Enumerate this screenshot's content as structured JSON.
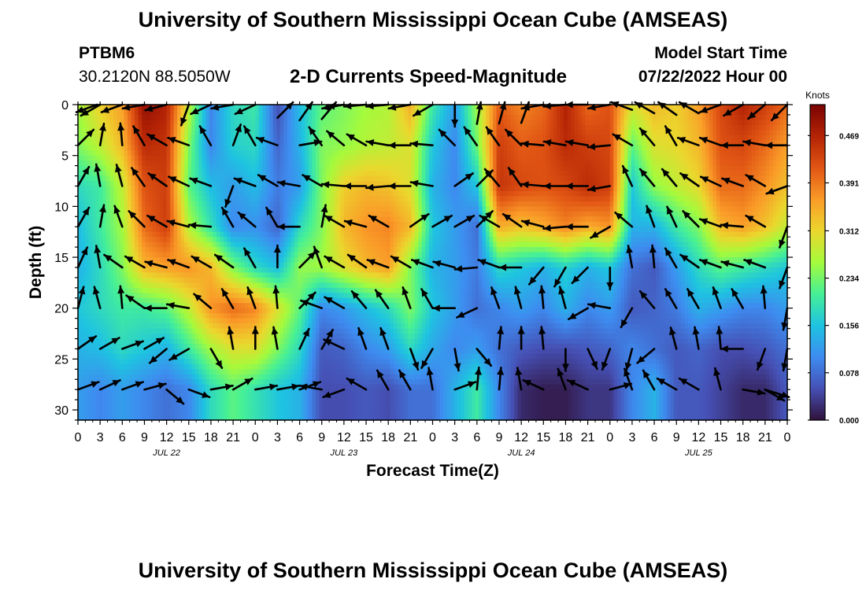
{
  "header": {
    "title": "University of Southern Mississippi Ocean Cube (AMSEAS)",
    "station": "PTBM6",
    "coords": "30.2120N  88.5050W",
    "subtitle": "2-D Currents Speed-Magnitude",
    "model_label": "Model Start Time",
    "model_time": "07/22/2022 Hour 00"
  },
  "footer": {
    "title": "University of Southern Mississippi Ocean Cube (AMSEAS)"
  },
  "chart_data": {
    "type": "heatmap",
    "title": "2-D Currents Speed-Magnitude",
    "xlabel": "Forecast Time(Z)",
    "ylabel": "Depth (ft)",
    "x_hours": [
      0,
      96
    ],
    "x_tick_labels": [
      "0",
      "3",
      "6",
      "9",
      "12",
      "15",
      "18",
      "21",
      "0",
      "3",
      "6",
      "9",
      "12",
      "15",
      "18",
      "21",
      "0",
      "3",
      "6",
      "9",
      "12",
      "15",
      "18",
      "21",
      "0",
      "3",
      "6",
      "9",
      "12",
      "15",
      "18",
      "21",
      "0"
    ],
    "date_labels": [
      {
        "hour": 12,
        "label": "JUL 22"
      },
      {
        "hour": 36,
        "label": "JUL 23"
      },
      {
        "hour": 60,
        "label": "JUL 24"
      },
      {
        "hour": 84,
        "label": "JUL 25"
      }
    ],
    "y_ticks": [
      0,
      5,
      10,
      15,
      20,
      25,
      30
    ],
    "ylim": [
      0,
      31
    ],
    "colorbar": {
      "unit": "Knots",
      "ticks": [
        "0.469",
        "0.391",
        "0.312",
        "0.234",
        "0.156",
        "0.078",
        "0.000"
      ],
      "min": 0,
      "max": 0.52
    },
    "depths": [
      0,
      4,
      8,
      12,
      16,
      20,
      24,
      28
    ],
    "time_step_hours": 3,
    "speed_knots": [
      [
        0.26,
        0.32,
        0.36,
        0.5,
        0.47,
        0.28,
        0.1,
        0.18,
        0.2,
        0.05,
        0.15,
        0.22,
        0.24,
        0.26,
        0.27,
        0.35,
        0.2,
        0.12,
        0.26,
        0.41,
        0.38,
        0.4,
        0.47,
        0.4,
        0.42,
        0.3,
        0.34,
        0.32,
        0.36,
        0.43,
        0.47,
        0.44,
        0.4
      ],
      [
        0.24,
        0.28,
        0.34,
        0.46,
        0.45,
        0.24,
        0.1,
        0.17,
        0.18,
        0.07,
        0.14,
        0.24,
        0.25,
        0.27,
        0.28,
        0.3,
        0.16,
        0.1,
        0.23,
        0.44,
        0.41,
        0.42,
        0.46,
        0.44,
        0.43,
        0.22,
        0.3,
        0.31,
        0.34,
        0.42,
        0.43,
        0.4,
        0.36
      ],
      [
        0.18,
        0.2,
        0.28,
        0.42,
        0.44,
        0.22,
        0.15,
        0.12,
        0.15,
        0.09,
        0.12,
        0.24,
        0.32,
        0.34,
        0.33,
        0.3,
        0.14,
        0.1,
        0.16,
        0.45,
        0.43,
        0.42,
        0.43,
        0.46,
        0.44,
        0.16,
        0.25,
        0.28,
        0.31,
        0.4,
        0.4,
        0.37,
        0.33
      ],
      [
        0.15,
        0.2,
        0.26,
        0.4,
        0.44,
        0.27,
        0.19,
        0.1,
        0.11,
        0.07,
        0.18,
        0.24,
        0.34,
        0.37,
        0.38,
        0.34,
        0.16,
        0.12,
        0.08,
        0.35,
        0.33,
        0.35,
        0.38,
        0.35,
        0.37,
        0.14,
        0.14,
        0.2,
        0.24,
        0.34,
        0.36,
        0.33,
        0.28
      ],
      [
        0.14,
        0.18,
        0.24,
        0.34,
        0.36,
        0.37,
        0.34,
        0.24,
        0.18,
        0.15,
        0.25,
        0.26,
        0.3,
        0.34,
        0.36,
        0.24,
        0.14,
        0.12,
        0.09,
        0.18,
        0.16,
        0.14,
        0.17,
        0.14,
        0.16,
        0.08,
        0.06,
        0.12,
        0.18,
        0.22,
        0.2,
        0.18,
        0.16
      ],
      [
        0.16,
        0.18,
        0.2,
        0.2,
        0.22,
        0.28,
        0.37,
        0.4,
        0.38,
        0.3,
        0.22,
        0.1,
        0.12,
        0.15,
        0.18,
        0.24,
        0.16,
        0.12,
        0.08,
        0.1,
        0.12,
        0.1,
        0.14,
        0.1,
        0.12,
        0.06,
        0.07,
        0.09,
        0.14,
        0.12,
        0.1,
        0.1,
        0.12
      ],
      [
        0.14,
        0.15,
        0.18,
        0.16,
        0.14,
        0.2,
        0.26,
        0.3,
        0.3,
        0.24,
        0.18,
        0.06,
        0.07,
        0.1,
        0.12,
        0.18,
        0.13,
        0.1,
        0.12,
        0.08,
        0.06,
        0.05,
        0.05,
        0.06,
        0.07,
        0.1,
        0.08,
        0.06,
        0.07,
        0.05,
        0.05,
        0.06,
        0.08
      ],
      [
        0.12,
        0.1,
        0.12,
        0.1,
        0.08,
        0.1,
        0.18,
        0.22,
        0.19,
        0.16,
        0.14,
        0.05,
        0.05,
        0.06,
        0.05,
        0.08,
        0.08,
        0.14,
        0.2,
        0.1,
        0.02,
        0.01,
        0.01,
        0.03,
        0.03,
        0.1,
        0.14,
        0.06,
        0.06,
        0.04,
        0.02,
        0.02,
        0.06
      ]
    ],
    "direction_deg": [
      [
        250,
        240,
        250,
        260,
        255,
        200,
        245,
        260,
        245,
        45,
        35,
        40,
        260,
        265,
        265,
        260,
        240,
        180,
        10,
        15,
        20,
        260,
        265,
        270,
        260,
        290,
        300,
        305,
        300,
        250,
        240,
        230,
        225
      ],
      [
        45,
        10,
        355,
        330,
        300,
        290,
        330,
        20,
        330,
        290,
        80,
        325,
        310,
        300,
        280,
        270,
        275,
        315,
        325,
        325,
        315,
        275,
        280,
        280,
        265,
        300,
        320,
        330,
        290,
        290,
        270,
        280,
        270
      ],
      [
        30,
        350,
        345,
        325,
        305,
        295,
        290,
        200,
        290,
        300,
        280,
        300,
        275,
        270,
        265,
        270,
        280,
        55,
        45,
        320,
        325,
        275,
        270,
        270,
        260,
        335,
        320,
        320,
        305,
        295,
        290,
        300,
        250
      ],
      [
        30,
        10,
        340,
        315,
        300,
        285,
        275,
        330,
        310,
        330,
        270,
        10,
        300,
        285,
        300,
        55,
        60,
        60,
        45,
        300,
        305,
        285,
        265,
        270,
        240,
        310,
        340,
        335,
        315,
        290,
        275,
        300,
        200
      ],
      [
        25,
        350,
        305,
        300,
        285,
        290,
        300,
        305,
        330,
        360,
        45,
        340,
        300,
        305,
        290,
        300,
        290,
        285,
        265,
        290,
        270,
        220,
        210,
        225,
        180,
        350,
        355,
        330,
        305,
        290,
        285,
        290,
        200
      ],
      [
        15,
        345,
        355,
        305,
        270,
        280,
        310,
        330,
        340,
        355,
        45,
        290,
        300,
        320,
        325,
        340,
        330,
        270,
        245,
        340,
        345,
        355,
        345,
        240,
        280,
        210,
        320,
        330,
        330,
        340,
        330,
        355,
        190
      ],
      [
        55,
        60,
        70,
        60,
        230,
        240,
        150,
        350,
        360,
        350,
        25,
        30,
        295,
        340,
        340,
        160,
        210,
        170,
        140,
        5,
        360,
        355,
        180,
        155,
        200,
        195,
        230,
        345,
        350,
        355,
        270,
        200,
        190
      ],
      [
        70,
        65,
        70,
        75,
        130,
        110,
        80,
        60,
        80,
        80,
        70,
        280,
        250,
        300,
        330,
        330,
        350,
        70,
        5,
        5,
        350,
        295,
        340,
        295,
        75,
        340,
        330,
        300,
        300,
        345,
        100,
        120,
        110
      ]
    ]
  }
}
